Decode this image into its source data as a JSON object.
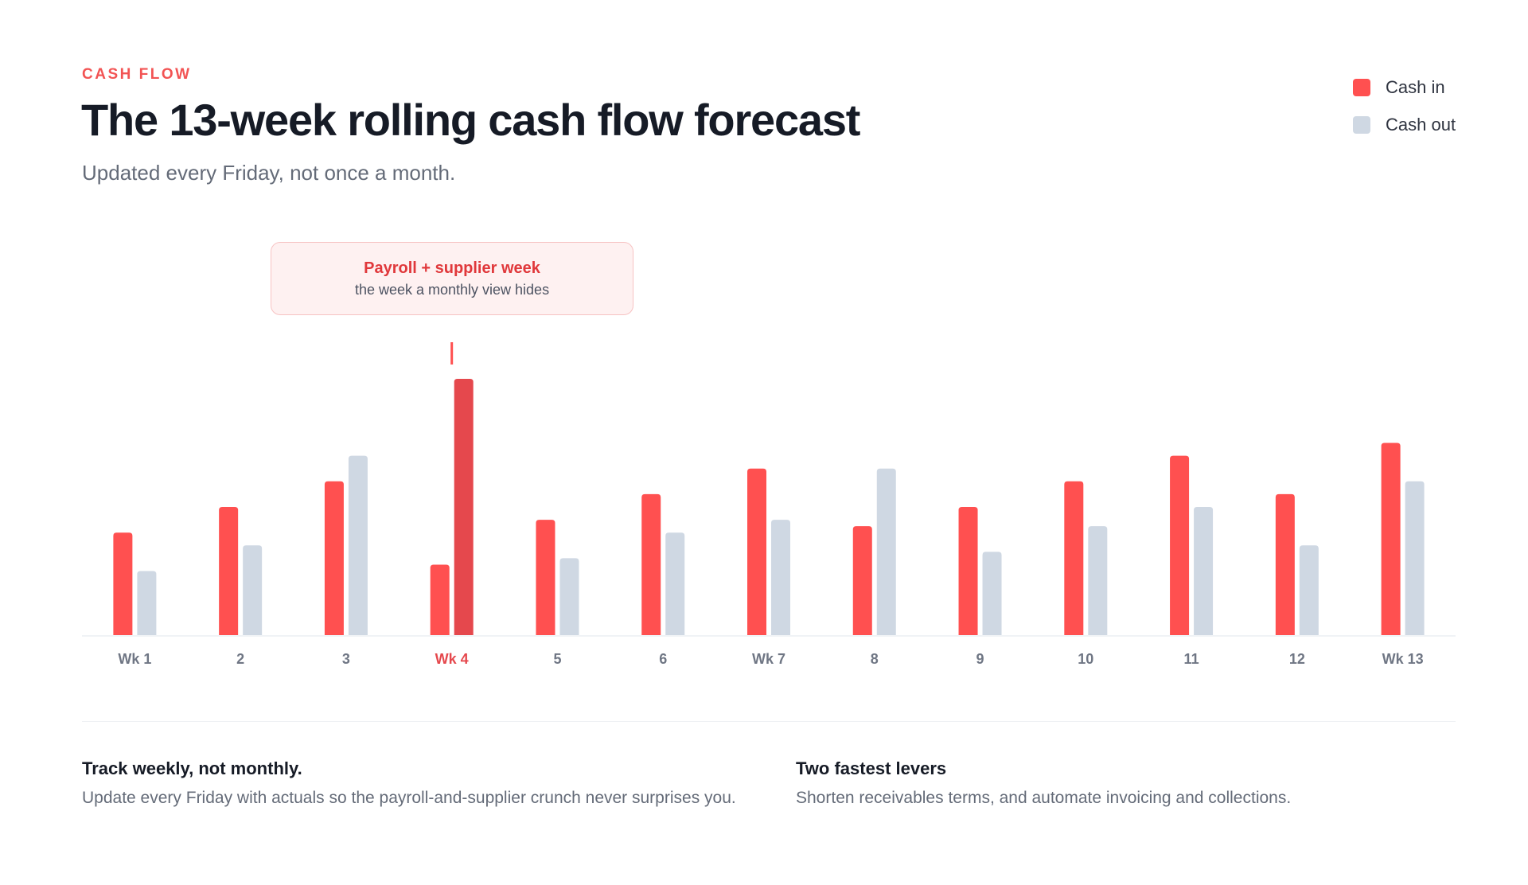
{
  "header": {
    "eyebrow": "CASH FLOW",
    "title": "The 13-week rolling cash flow forecast",
    "subtitle": "Updated every Friday, not once a month."
  },
  "legend": [
    {
      "label": "Cash in",
      "color": "#ff5050"
    },
    {
      "label": "Cash out",
      "color": "#cfd8e3"
    }
  ],
  "callout": {
    "title": "Payroll + supplier week",
    "subtitle": "the week a monthly view hides"
  },
  "chart_data": {
    "type": "bar",
    "categories": [
      "Wk 1",
      "2",
      "3",
      "Wk 4",
      "5",
      "6",
      "Wk 7",
      "8",
      "9",
      "10",
      "11",
      "12",
      "Wk 13"
    ],
    "series": [
      {
        "name": "Cash in",
        "color": "#ff5050",
        "values": [
          8,
          10,
          12,
          5.5,
          9,
          11,
          13,
          8.5,
          10,
          12,
          14,
          11,
          15
        ]
      },
      {
        "name": "Cash out",
        "color": "#cfd8e3",
        "values": [
          5,
          7,
          14,
          20,
          6,
          8,
          9,
          13,
          6.5,
          8.5,
          10,
          7,
          12
        ]
      }
    ],
    "highlight": {
      "category": "Wk 4",
      "series": "Cash out",
      "color": "#e5484d",
      "label_color": "#e5484d"
    },
    "ylim": [
      0,
      20
    ],
    "grid": false,
    "legend_position": "top-right",
    "xlabel": "",
    "ylabel": ""
  },
  "notes": [
    {
      "title": "Track weekly, not monthly.",
      "body": "Update every Friday with actuals so the payroll-and-supplier crunch never surprises you."
    },
    {
      "title": "Two fastest levers",
      "body": "Shorten receivables terms, and automate invoicing and collections."
    }
  ]
}
